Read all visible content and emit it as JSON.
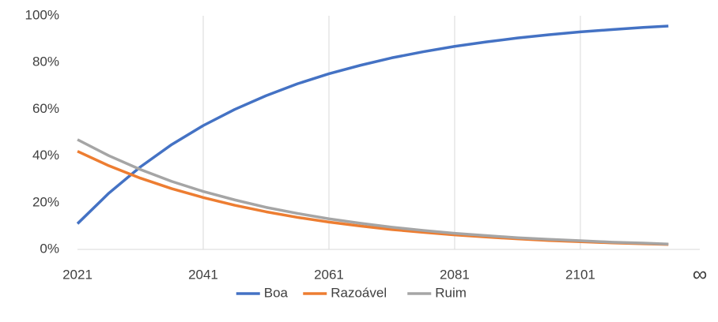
{
  "chart_data": {
    "type": "line",
    "x": [
      2021,
      2026,
      2031,
      2036,
      2041,
      2046,
      2051,
      2056,
      2061,
      2066,
      2071,
      2076,
      2081,
      2086,
      2091,
      2096,
      2101,
      2106,
      2111,
      2115
    ],
    "series": [
      {
        "name": "Boa",
        "color": "#4472c4",
        "values": [
          11.0,
          24.1,
          35.3,
          44.9,
          53.0,
          59.9,
          65.8,
          70.9,
          75.2,
          78.8,
          82.0,
          84.6,
          86.9,
          88.8,
          90.5,
          91.9,
          93.1,
          94.1,
          95.0,
          95.6
        ]
      },
      {
        "name": "Razoável",
        "color": "#ed7d31",
        "values": [
          42.0,
          35.8,
          30.5,
          26.0,
          22.2,
          18.9,
          16.1,
          13.7,
          11.7,
          10.0,
          8.5,
          7.3,
          6.2,
          5.3,
          4.5,
          3.8,
          3.3,
          2.8,
          2.4,
          2.1
        ]
      },
      {
        "name": "Ruim",
        "color": "#a5a5a5",
        "values": [
          47.0,
          40.1,
          34.2,
          29.1,
          24.8,
          21.2,
          18.0,
          15.4,
          13.1,
          11.2,
          9.5,
          8.1,
          6.9,
          5.9,
          5.0,
          4.3,
          3.7,
          3.1,
          2.7,
          2.3
        ]
      }
    ],
    "xlim": [
      2021,
      2120
    ],
    "xticks": [
      2021,
      2041,
      2061,
      2081,
      2101,
      {
        "value": 2120,
        "label": "∞"
      }
    ],
    "ylim": [
      0,
      100
    ],
    "yticks": [
      {
        "value": 0,
        "label": "0%"
      },
      {
        "value": 20,
        "label": "20%"
      },
      {
        "value": 40,
        "label": "40%"
      },
      {
        "value": 60,
        "label": "60%"
      },
      {
        "value": 80,
        "label": "80%"
      },
      {
        "value": 100,
        "label": "100%"
      }
    ],
    "grid": "x",
    "legend": "bottom"
  }
}
